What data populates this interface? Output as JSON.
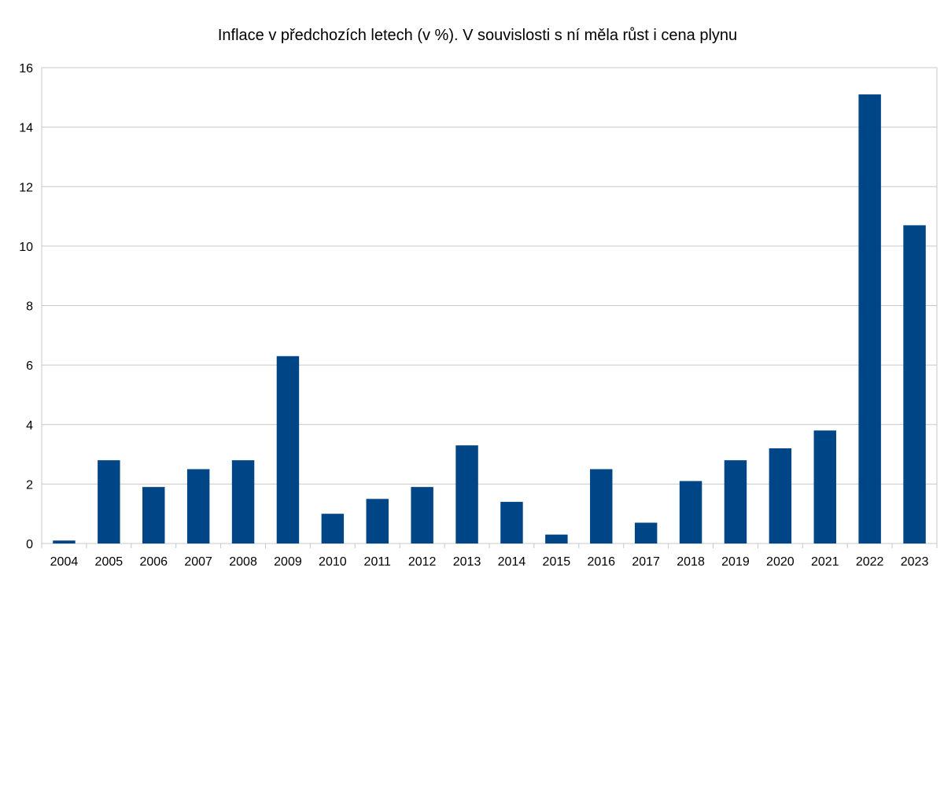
{
  "chart_data": {
    "type": "bar",
    "title": "Inflace v předchozích letech (v %). V souvislosti s ní měla růst i cena plynu",
    "xlabel": "",
    "ylabel": "",
    "categories": [
      "2004",
      "2005",
      "2006",
      "2007",
      "2008",
      "2009",
      "2010",
      "2011",
      "2012",
      "2013",
      "2014",
      "2015",
      "2016",
      "2017",
      "2018",
      "2019",
      "2020",
      "2021",
      "2022",
      "2023"
    ],
    "values": [
      0.1,
      2.8,
      1.9,
      2.5,
      2.8,
      6.3,
      1.0,
      1.5,
      1.9,
      3.3,
      1.4,
      0.3,
      2.5,
      0.7,
      2.1,
      2.8,
      3.2,
      3.8,
      15.1,
      10.7
    ],
    "ylim": [
      0,
      16
    ],
    "yticks": [
      "0",
      "2",
      "4",
      "6",
      "8",
      "10",
      "12",
      "14",
      "16"
    ],
    "grid": true,
    "legend": "none",
    "colors": {
      "bar": "#004586",
      "grid": "#c8c8c8"
    }
  }
}
